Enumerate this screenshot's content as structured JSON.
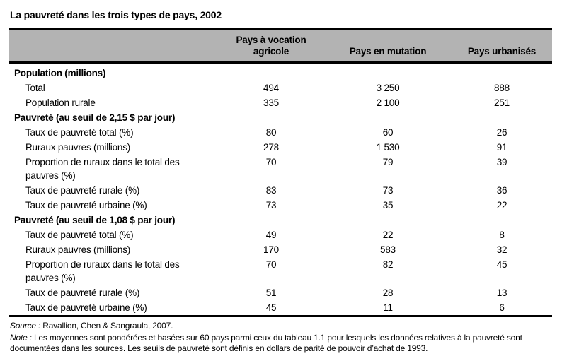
{
  "title": "La pauvreté dans les trois types de pays, 2002",
  "colors": {
    "header_bg": "#b3b3b3",
    "border": "#000000",
    "text": "#000000",
    "background": "#ffffff"
  },
  "table": {
    "col_headers": [
      {
        "label": "Pays à vocation agricole"
      },
      {
        "label": "Pays en mutation"
      },
      {
        "label": "Pays urbanisés"
      }
    ],
    "rows": [
      {
        "type": "section",
        "label": "Population (millions)",
        "values": [
          "",
          "",
          ""
        ]
      },
      {
        "type": "item",
        "label": "Total",
        "values": [
          "494",
          "3 250",
          "888"
        ]
      },
      {
        "type": "item",
        "label": "Population rurale",
        "values": [
          "335",
          "2 100",
          "251"
        ]
      },
      {
        "type": "section",
        "label": "Pauvreté (au seuil de 2,15 $ par jour)",
        "values": [
          "",
          "",
          ""
        ]
      },
      {
        "type": "item",
        "label": "Taux de pauvreté total (%)",
        "values": [
          "80",
          "60",
          "26"
        ]
      },
      {
        "type": "item",
        "label": "Ruraux pauvres (millions)",
        "values": [
          "278",
          "1 530",
          "91"
        ]
      },
      {
        "type": "item",
        "label": "Proportion de ruraux dans le total des pauvres (%)",
        "values": [
          "70",
          "79",
          "39"
        ]
      },
      {
        "type": "item",
        "label": "Taux de pauvreté rurale (%)",
        "values": [
          "83",
          "73",
          "36"
        ]
      },
      {
        "type": "item",
        "label": "Taux de pauvreté urbaine (%)",
        "values": [
          "73",
          "35",
          "22"
        ]
      },
      {
        "type": "section",
        "label": "Pauvreté (au seuil de 1,08 $ par jour)",
        "values": [
          "",
          "",
          ""
        ]
      },
      {
        "type": "item",
        "label": "Taux de pauvreté total (%)",
        "values": [
          "49",
          "22",
          "8"
        ]
      },
      {
        "type": "item",
        "label": "Ruraux pauvres (millions)",
        "values": [
          "170",
          "583",
          "32"
        ]
      },
      {
        "type": "item",
        "label": "Proportion de ruraux dans le total des pauvres (%)",
        "values": [
          "70",
          "82",
          "45"
        ]
      },
      {
        "type": "item",
        "label": "Taux de pauvreté rurale (%)",
        "values": [
          "51",
          "28",
          "13"
        ]
      },
      {
        "type": "item",
        "label": "Taux de pauvreté urbaine (%)",
        "values": [
          "45",
          "11",
          "6"
        ]
      }
    ]
  },
  "footer": {
    "source_prefix": "Source :",
    "source_text": " Ravallion, Chen & Sangraula, 2007.",
    "note_prefix": "Note :",
    "note_text": " Les moyennes sont pondérées et basées sur 60 pays parmi ceux du tableau 1.1 pour lesquels les données relatives à la pauvreté sont documentées dans les sources. Les seuils de pauvreté sont définis en dollars de parité de pouvoir d’achat de 1993."
  }
}
